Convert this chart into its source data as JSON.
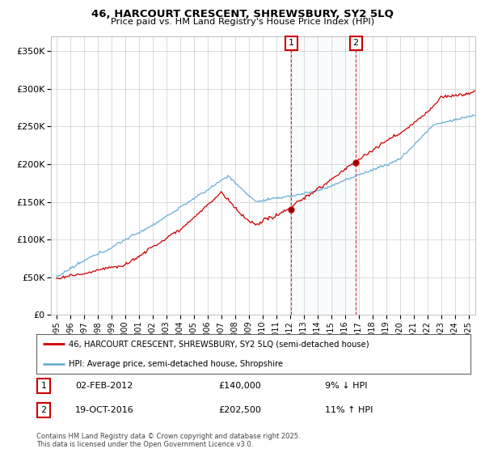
{
  "title": "46, HARCOURT CRESCENT, SHREWSBURY, SY2 5LQ",
  "subtitle": "Price paid vs. HM Land Registry's House Price Index (HPI)",
  "legend_line1": "46, HARCOURT CRESCENT, SHREWSBURY, SY2 5LQ (semi-detached house)",
  "legend_line2": "HPI: Average price, semi-detached house, Shropshire",
  "annotation1": {
    "num": "1",
    "date": "02-FEB-2012",
    "price": "£140,000",
    "pct": "9% ↓ HPI",
    "year": 2012.09
  },
  "annotation2": {
    "num": "2",
    "date": "19-OCT-2016",
    "price": "£202,500",
    "pct": "11% ↑ HPI",
    "year": 2016.8
  },
  "footer": "Contains HM Land Registry data © Crown copyright and database right 2025.\nThis data is licensed under the Open Government Licence v3.0.",
  "ylim": [
    0,
    370000
  ],
  "yticks": [
    0,
    50000,
    100000,
    150000,
    200000,
    250000,
    300000,
    350000
  ],
  "ytick_labels": [
    "£0",
    "£50K",
    "£100K",
    "£150K",
    "£200K",
    "£250K",
    "£300K",
    "£350K"
  ],
  "color_hpi": "#6baed6",
  "color_price": "#cc0000",
  "background_color": "#ffffff",
  "grid_color": "#cccccc",
  "xlim_left": 1994.6,
  "xlim_right": 2025.5
}
